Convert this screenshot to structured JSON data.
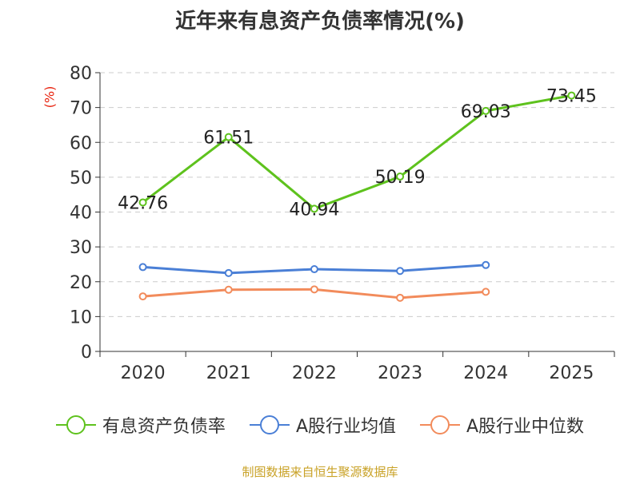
{
  "chart_data": {
    "type": "line",
    "title": "近年来有息资产负债率情况(%)",
    "ylabel": "(%)",
    "x": [
      "2020",
      "2021",
      "2022",
      "2023",
      "2024",
      "2025"
    ],
    "ylim": [
      0,
      80
    ],
    "yticks": [
      0,
      10,
      20,
      30,
      40,
      50,
      60,
      70,
      80
    ],
    "grid": true,
    "legend_position": "bottom",
    "series": [
      {
        "name": "有息资产负债率",
        "color": "#5ec21d",
        "values": [
          42.76,
          61.51,
          40.94,
          50.19,
          69.03,
          73.45
        ],
        "labels": [
          "42.76",
          "61.51",
          "40.94",
          "50.19",
          "69.03",
          "73.45"
        ]
      },
      {
        "name": "A股行业均值",
        "color": "#4a7fd6",
        "values": [
          24.2,
          22.5,
          23.6,
          23.1,
          24.8,
          null
        ]
      },
      {
        "name": "A股行业中位数",
        "color": "#f28b5b",
        "values": [
          15.8,
          17.7,
          17.8,
          15.4,
          17.1,
          null
        ]
      }
    ]
  },
  "source_text": "制图数据来自恒生聚源数据库"
}
